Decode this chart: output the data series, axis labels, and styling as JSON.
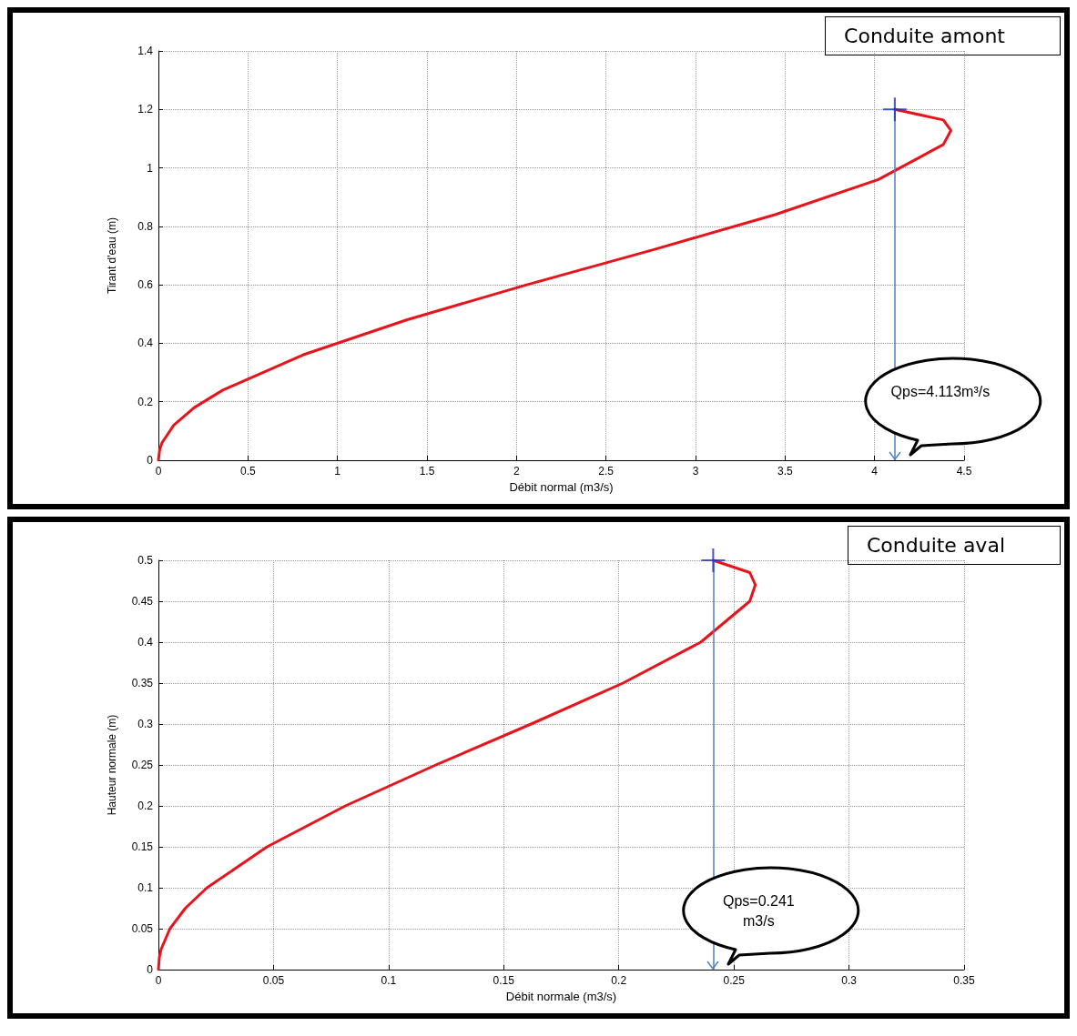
{
  "chart_data": [
    {
      "type": "line",
      "title": "Conduite amont",
      "xlabel": "Débit normal (m3/s)",
      "ylabel": "Tirant d'eau (m)",
      "xlim": [
        0,
        4.5
      ],
      "ylim": [
        0,
        1.4
      ],
      "xticks": [
        0,
        0.5,
        1,
        1.5,
        2,
        2.5,
        3,
        3.5,
        4,
        4.5
      ],
      "yticks": [
        0,
        0.2,
        0.4,
        0.6,
        0.8,
        1,
        1.2,
        1.4
      ],
      "grid": true,
      "marker": "none",
      "line_style": "solid",
      "series": [
        {
          "color": "#e8141c",
          "x": [
            0,
            0.007,
            0.02,
            0.086,
            0.2,
            0.36,
            0.806,
            1.386,
            2.057,
            2.763,
            3.444,
            4.021,
            4.384,
            4.426,
            4.384,
            4.113
          ],
          "values": [
            0,
            0.036,
            0.06,
            0.12,
            0.18,
            0.24,
            0.36,
            0.48,
            0.6,
            0.72,
            0.84,
            0.96,
            1.08,
            1.128,
            1.164,
            1.2
          ]
        },
        {
          "type": "scatter",
          "marker": "cross",
          "color": "#1f2fbf",
          "x": [
            4.113
          ],
          "values": [
            1.2
          ]
        }
      ],
      "ref_lines": [
        {
          "axis": "x",
          "value": 4.113,
          "label": "Qps=4.113m³/s",
          "color": "#4f81bd"
        }
      ]
    },
    {
      "type": "line",
      "title": "Conduite aval",
      "xlabel": "Débit normale (m3/s)",
      "ylabel": "Hauteur normale (m)",
      "xlim": [
        0,
        0.35
      ],
      "ylim": [
        0,
        0.5
      ],
      "xticks": [
        0,
        0.05,
        0.1,
        0.15,
        0.2,
        0.25,
        0.3,
        0.35
      ],
      "yticks": [
        0,
        0.05,
        0.1,
        0.15,
        0.2,
        0.25,
        0.3,
        0.35,
        0.4,
        0.45,
        0.5
      ],
      "grid": true,
      "marker": "none",
      "line_style": "solid",
      "series": [
        {
          "color": "#e8141c",
          "x": [
            0,
            0.0004,
            0.0012,
            0.005,
            0.0117,
            0.0211,
            0.0472,
            0.0812,
            0.1205,
            0.1619,
            0.2018,
            0.2356,
            0.2569,
            0.2593,
            0.2569,
            0.241
          ],
          "values": [
            0,
            0.015,
            0.025,
            0.05,
            0.075,
            0.1,
            0.15,
            0.2,
            0.25,
            0.3,
            0.35,
            0.4,
            0.45,
            0.47,
            0.485,
            0.5
          ]
        },
        {
          "type": "scatter",
          "marker": "cross",
          "color": "#1f2fbf",
          "x": [
            0.241
          ],
          "values": [
            0.5
          ]
        }
      ],
      "ref_lines": [
        {
          "axis": "x",
          "value": 0.241,
          "label": "Qps=0.241 m3/s",
          "color": "#4f81bd"
        }
      ]
    }
  ]
}
